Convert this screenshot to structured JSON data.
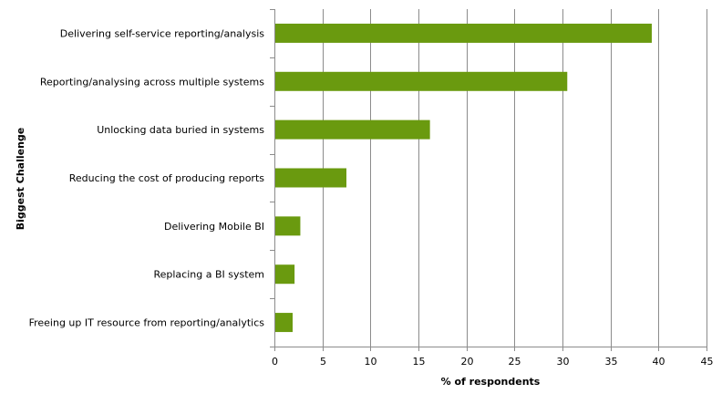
{
  "chart_data": {
    "type": "bar",
    "orientation": "horizontal",
    "title": "",
    "xlabel": "% of respondents",
    "ylabel": "Biggest Challenge",
    "categories": [
      "Delivering self-service reporting/analysis",
      "Reporting/analysing across multiple systems",
      "Unlocking data buried in systems",
      "Reducing the cost of producing reports",
      "Delivering Mobile BI",
      "Replacing a BI system",
      "Freeing up IT resource from reporting/analytics"
    ],
    "values": [
      39.3,
      30.5,
      16.2,
      7.5,
      2.7,
      2.1,
      1.9
    ],
    "xlim": [
      0,
      45
    ],
    "xticks": [
      "0",
      "5",
      "10",
      "15",
      "20",
      "25",
      "30",
      "35",
      "40",
      "45"
    ],
    "grid": "vertical",
    "legend": "none",
    "bar_color": "#6a9a0f",
    "grid_color": "#8c8c8c"
  }
}
